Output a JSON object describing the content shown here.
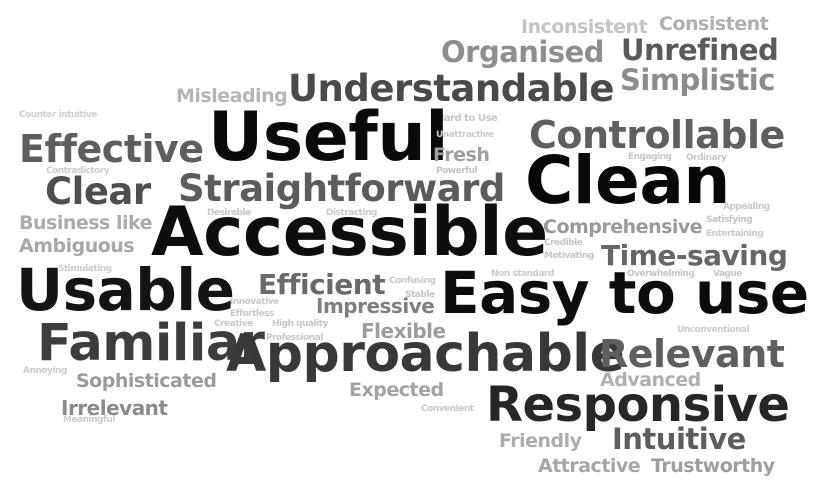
{
  "title": "",
  "words": [
    {
      "text": "Inconsistent",
      "color": "#c4c4c4"
    },
    {
      "text": "Consistent",
      "color": "#b0b0b0"
    },
    {
      "text": "Organised",
      "color": "#8e8e8e"
    },
    {
      "text": "Unrefined",
      "color": "#5a5a5a"
    },
    {
      "text": "Simplistic",
      "color": "#8c8c8c"
    },
    {
      "text": "Misleading",
      "color": "#b5b5b5"
    },
    {
      "text": "Understandable",
      "color": "#4a4a4a"
    },
    {
      "text": "Counter intuitive",
      "color": "#cfcfcf"
    },
    {
      "text": "Hard to Use",
      "color": "#c5c5c5"
    },
    {
      "text": "Useful",
      "color": "#0a0a0a"
    },
    {
      "text": "Controllable",
      "color": "#5f5f5f"
    },
    {
      "text": "Unattractive",
      "color": "#cccccc"
    },
    {
      "text": "Effective",
      "color": "#5e5e5e"
    },
    {
      "text": "Fresh",
      "color": "#9f9f9f"
    },
    {
      "text": "Contradictory",
      "color": "#cccccc"
    },
    {
      "text": "Powerful",
      "color": "#c3c3c3"
    },
    {
      "text": "Engaging",
      "color": "#c7c7c7"
    },
    {
      "text": "Ordinary",
      "color": "#c7c7c7"
    },
    {
      "text": "Clear",
      "color": "#4e4e4e"
    },
    {
      "text": "Straightforward",
      "color": "#5c5c5c"
    },
    {
      "text": "Clean",
      "color": "#080808"
    },
    {
      "text": "Appealing",
      "color": "#c9c9c9"
    },
    {
      "text": "Business like",
      "color": "#ababab"
    },
    {
      "text": "Desirable",
      "color": "#c6c6c6"
    },
    {
      "text": "Distracting",
      "color": "#c9c9c9"
    },
    {
      "text": "Satisfying",
      "color": "#c4c4c4"
    },
    {
      "text": "Comprehensive",
      "color": "#9a9a9a"
    },
    {
      "text": "Entertaining",
      "color": "#cbcbcb"
    },
    {
      "text": "Ambiguous",
      "color": "#a8a8a8"
    },
    {
      "text": "Accessible",
      "color": "#0e0e0e"
    },
    {
      "text": "Credible",
      "color": "#c6c6c6"
    },
    {
      "text": "Motivating",
      "color": "#c6c6c6"
    },
    {
      "text": "Time-saving",
      "color": "#666666"
    },
    {
      "text": "Stimulating",
      "color": "#cbcbcb"
    },
    {
      "text": "Non standard",
      "color": "#cbcbcb"
    },
    {
      "text": "Overwhelming",
      "color": "#c6c6c6"
    },
    {
      "text": "Vague",
      "color": "#c6c6c6"
    },
    {
      "text": "Efficient",
      "color": "#6a6a6a"
    },
    {
      "text": "Confusing",
      "color": "#c9c9c9"
    },
    {
      "text": "Usable",
      "color": "#141414"
    },
    {
      "text": "Stable",
      "color": "#c4c4c4"
    },
    {
      "text": "Easy to use",
      "color": "#0c0c0c"
    },
    {
      "text": "Innovative",
      "color": "#c9c9c9"
    },
    {
      "text": "Impressive",
      "color": "#7f7f7f"
    },
    {
      "text": "Effortless",
      "color": "#c9c9c9"
    },
    {
      "text": "Creative",
      "color": "#c9c9c9"
    },
    {
      "text": "High quality",
      "color": "#c6c6c6"
    },
    {
      "text": "Flexible",
      "color": "#9c9c9c"
    },
    {
      "text": "Unconventional",
      "color": "#cbcbcb"
    },
    {
      "text": "Professional",
      "color": "#c9c9c9"
    },
    {
      "text": "Familiar",
      "color": "#3d3d3d"
    },
    {
      "text": "Approachable",
      "color": "#383838"
    },
    {
      "text": "Relevant",
      "color": "#5f5f5f"
    },
    {
      "text": "Annoying",
      "color": "#cbcbcb"
    },
    {
      "text": "Sophisticated",
      "color": "#9b9b9b"
    },
    {
      "text": "Advanced",
      "color": "#afafaf"
    },
    {
      "text": "Expected",
      "color": "#a2a2a2"
    },
    {
      "text": "Irrelevant",
      "color": "#8b8b8b"
    },
    {
      "text": "Convenient",
      "color": "#c6c6c6"
    },
    {
      "text": "Meaningful",
      "color": "#cbcbcb"
    },
    {
      "text": "Responsive",
      "color": "#262626"
    },
    {
      "text": "Friendly",
      "color": "#acacac"
    },
    {
      "text": "Intuitive",
      "color": "#5d5d5d"
    },
    {
      "text": "Attractive",
      "color": "#a6a6a6"
    },
    {
      "text": "Trustworthy",
      "color": "#9e9e9e"
    }
  ]
}
